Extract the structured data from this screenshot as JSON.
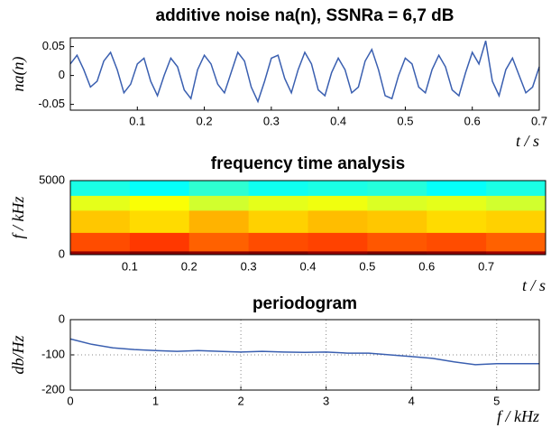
{
  "chart_data": [
    {
      "type": "line",
      "title": "additive noise na(n), SSNRa = 6,7 dB",
      "ylabel": "na(n)",
      "xlabel": "t / s",
      "color": "#3a5fb0",
      "x": [
        0,
        0.01,
        0.02,
        0.03,
        0.04,
        0.05,
        0.06,
        0.07,
        0.08,
        0.09,
        0.1,
        0.11,
        0.12,
        0.13,
        0.14,
        0.15,
        0.16,
        0.17,
        0.18,
        0.19,
        0.2,
        0.21,
        0.22,
        0.23,
        0.24,
        0.25,
        0.26,
        0.27,
        0.28,
        0.29,
        0.3,
        0.31,
        0.32,
        0.33,
        0.34,
        0.35,
        0.36,
        0.37,
        0.38,
        0.39,
        0.4,
        0.41,
        0.42,
        0.43,
        0.44,
        0.45,
        0.46,
        0.47,
        0.48,
        0.49,
        0.5,
        0.51,
        0.52,
        0.53,
        0.54,
        0.55,
        0.56,
        0.57,
        0.58,
        0.59,
        0.6,
        0.61,
        0.62,
        0.63,
        0.64,
        0.65,
        0.66,
        0.67,
        0.68,
        0.69,
        0.7
      ],
      "values": [
        0.02,
        0.035,
        0.01,
        -0.02,
        -0.01,
        0.025,
        0.04,
        0.01,
        -0.03,
        -0.015,
        0.02,
        0.03,
        -0.01,
        -0.035,
        0.0,
        0.03,
        0.015,
        -0.025,
        -0.04,
        0.01,
        0.035,
        0.02,
        -0.015,
        -0.03,
        0.005,
        0.04,
        0.025,
        -0.02,
        -0.045,
        -0.01,
        0.03,
        0.035,
        -0.005,
        -0.03,
        0.01,
        0.04,
        0.02,
        -0.025,
        -0.035,
        0.005,
        0.03,
        0.01,
        -0.03,
        -0.02,
        0.025,
        0.045,
        0.01,
        -0.035,
        -0.04,
        0.0,
        0.03,
        0.02,
        -0.02,
        -0.03,
        0.01,
        0.035,
        0.015,
        -0.025,
        -0.035,
        0.005,
        0.04,
        0.02,
        0.06,
        -0.01,
        -0.035,
        0.01,
        0.03,
        0.0,
        -0.03,
        -0.02,
        0.015
      ],
      "xlim": [
        0,
        0.7
      ],
      "ylim": [
        -0.06,
        0.065
      ],
      "xticks": [
        0.1,
        0.2,
        0.3,
        0.4,
        0.5,
        0.6,
        0.7
      ],
      "yticks": [
        -0.05,
        0,
        0.05
      ],
      "grid": false
    },
    {
      "type": "heatmap",
      "title": "frequency time analysis",
      "ylabel": "f / kHz",
      "xlabel": "t / s",
      "xbins": [
        0,
        0.1,
        0.2,
        0.3,
        0.4,
        0.5,
        0.6,
        0.7,
        0.8
      ],
      "ybins": [
        0,
        250,
        1500,
        3000,
        4000,
        5000
      ],
      "z": [
        [
          0.98,
          1,
          0.99,
          1,
          0.98,
          1,
          0.99,
          0.97
        ],
        [
          0.8,
          0.82,
          0.78,
          0.8,
          0.81,
          0.79,
          0.8,
          0.78
        ],
        [
          0.68,
          0.66,
          0.7,
          0.67,
          0.69,
          0.68,
          0.66,
          0.67
        ],
        [
          0.6,
          0.62,
          0.58,
          0.6,
          0.61,
          0.59,
          0.6,
          0.58
        ],
        [
          0.4,
          0.38,
          0.42,
          0.39,
          0.4,
          0.41,
          0.38,
          0.4
        ]
      ],
      "xlim": [
        0,
        0.8
      ],
      "ylim": [
        0,
        5000
      ],
      "xticks": [
        0.1,
        0.2,
        0.3,
        0.4,
        0.5,
        0.6,
        0.7
      ],
      "yticks": [
        0,
        5000
      ],
      "grid": false
    },
    {
      "type": "line",
      "title": "periodogram",
      "ylabel": "db/Hz",
      "xlabel": "f / kHz",
      "color": "#3a5fb0",
      "x": [
        0,
        0.25,
        0.5,
        0.75,
        1,
        1.25,
        1.5,
        1.75,
        2,
        2.25,
        2.5,
        2.75,
        3,
        3.25,
        3.5,
        3.75,
        4,
        4.25,
        4.5,
        4.75,
        5,
        5.25,
        5.5
      ],
      "values": [
        -55,
        -70,
        -80,
        -85,
        -88,
        -90,
        -88,
        -90,
        -92,
        -90,
        -92,
        -93,
        -92,
        -95,
        -95,
        -100,
        -105,
        -110,
        -120,
        -128,
        -125,
        -125,
        -125
      ],
      "xlim": [
        0,
        5.5
      ],
      "ylim": [
        -200,
        0
      ],
      "xticks": [
        0,
        1,
        2,
        3,
        4,
        5
      ],
      "yticks": [
        -200,
        -100,
        0
      ],
      "grid": true
    }
  ]
}
